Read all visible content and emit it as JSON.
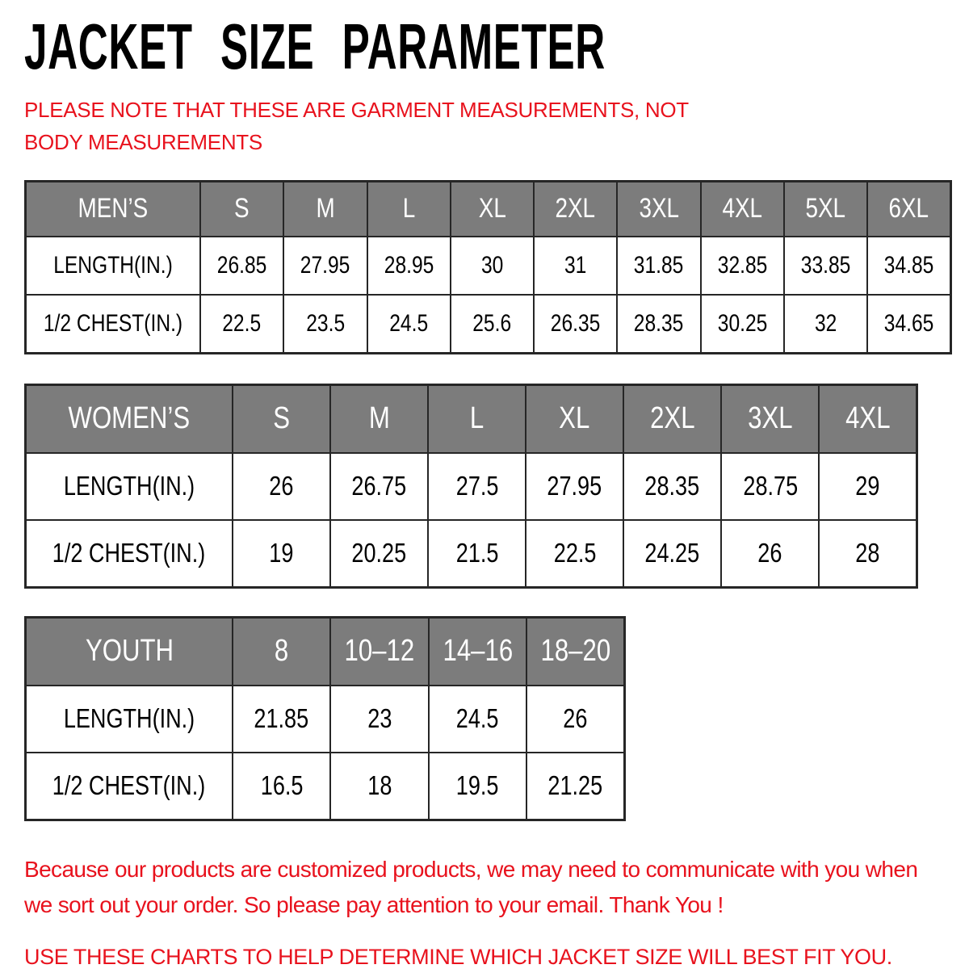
{
  "page": {
    "title": "JACKET SIZE PARAMETER",
    "note": "PLEASE NOTE THAT THESE ARE GARMENT MEASUREMENTS, NOT BODY MEASUREMENTS",
    "footer_notice": "Because our products are customized products, we may need to communicate with you when we sort out your order. So please pay attention to your email. Thank You !",
    "footer_instruction": "USE THESE CHARTS TO HELP DETERMINE WHICH JACKET SIZE WILL BEST FIT YOU."
  },
  "colors": {
    "accent_red": "#e8121d",
    "header_gray": "#7c7c7c",
    "border_dark": "#262626",
    "header_text": "#ffffff",
    "body_text": "#000000",
    "background": "#ffffff"
  },
  "tables": [
    {
      "id": "mens",
      "header": [
        "MEN’S",
        "S",
        "M",
        "L",
        "XL",
        "2XL",
        "3XL",
        "4XL",
        "5XL",
        "6XL"
      ],
      "rows": [
        {
          "label": "LENGTH(IN.)",
          "values": [
            "26.85",
            "27.95",
            "28.95",
            "30",
            "31",
            "31.85",
            "32.85",
            "33.85",
            "34.85"
          ]
        },
        {
          "label": "1/2 CHEST(IN.)",
          "values": [
            "22.5",
            "23.5",
            "24.5",
            "25.6",
            "26.35",
            "28.35",
            "30.25",
            "32",
            "34.65"
          ]
        }
      ]
    },
    {
      "id": "womens",
      "header": [
        "WOMEN’S",
        "S",
        "M",
        "L",
        "XL",
        "2XL",
        "3XL",
        "4XL"
      ],
      "rows": [
        {
          "label": "LENGTH(IN.)",
          "values": [
            "26",
            "26.75",
            "27.5",
            "27.95",
            "28.35",
            "28.75",
            "29"
          ]
        },
        {
          "label": "1/2 CHEST(IN.)",
          "values": [
            "19",
            "20.25",
            "21.5",
            "22.5",
            "24.25",
            "26",
            "28"
          ]
        }
      ]
    },
    {
      "id": "youth",
      "header": [
        "YOUTH",
        "8",
        "10–12",
        "14–16",
        "18–20"
      ],
      "rows": [
        {
          "label": "LENGTH(IN.)",
          "values": [
            "21.85",
            "23",
            "24.5",
            "26"
          ]
        },
        {
          "label": "1/2 CHEST(IN.)",
          "values": [
            "16.5",
            "18",
            "19.5",
            "21.25"
          ]
        }
      ]
    }
  ]
}
